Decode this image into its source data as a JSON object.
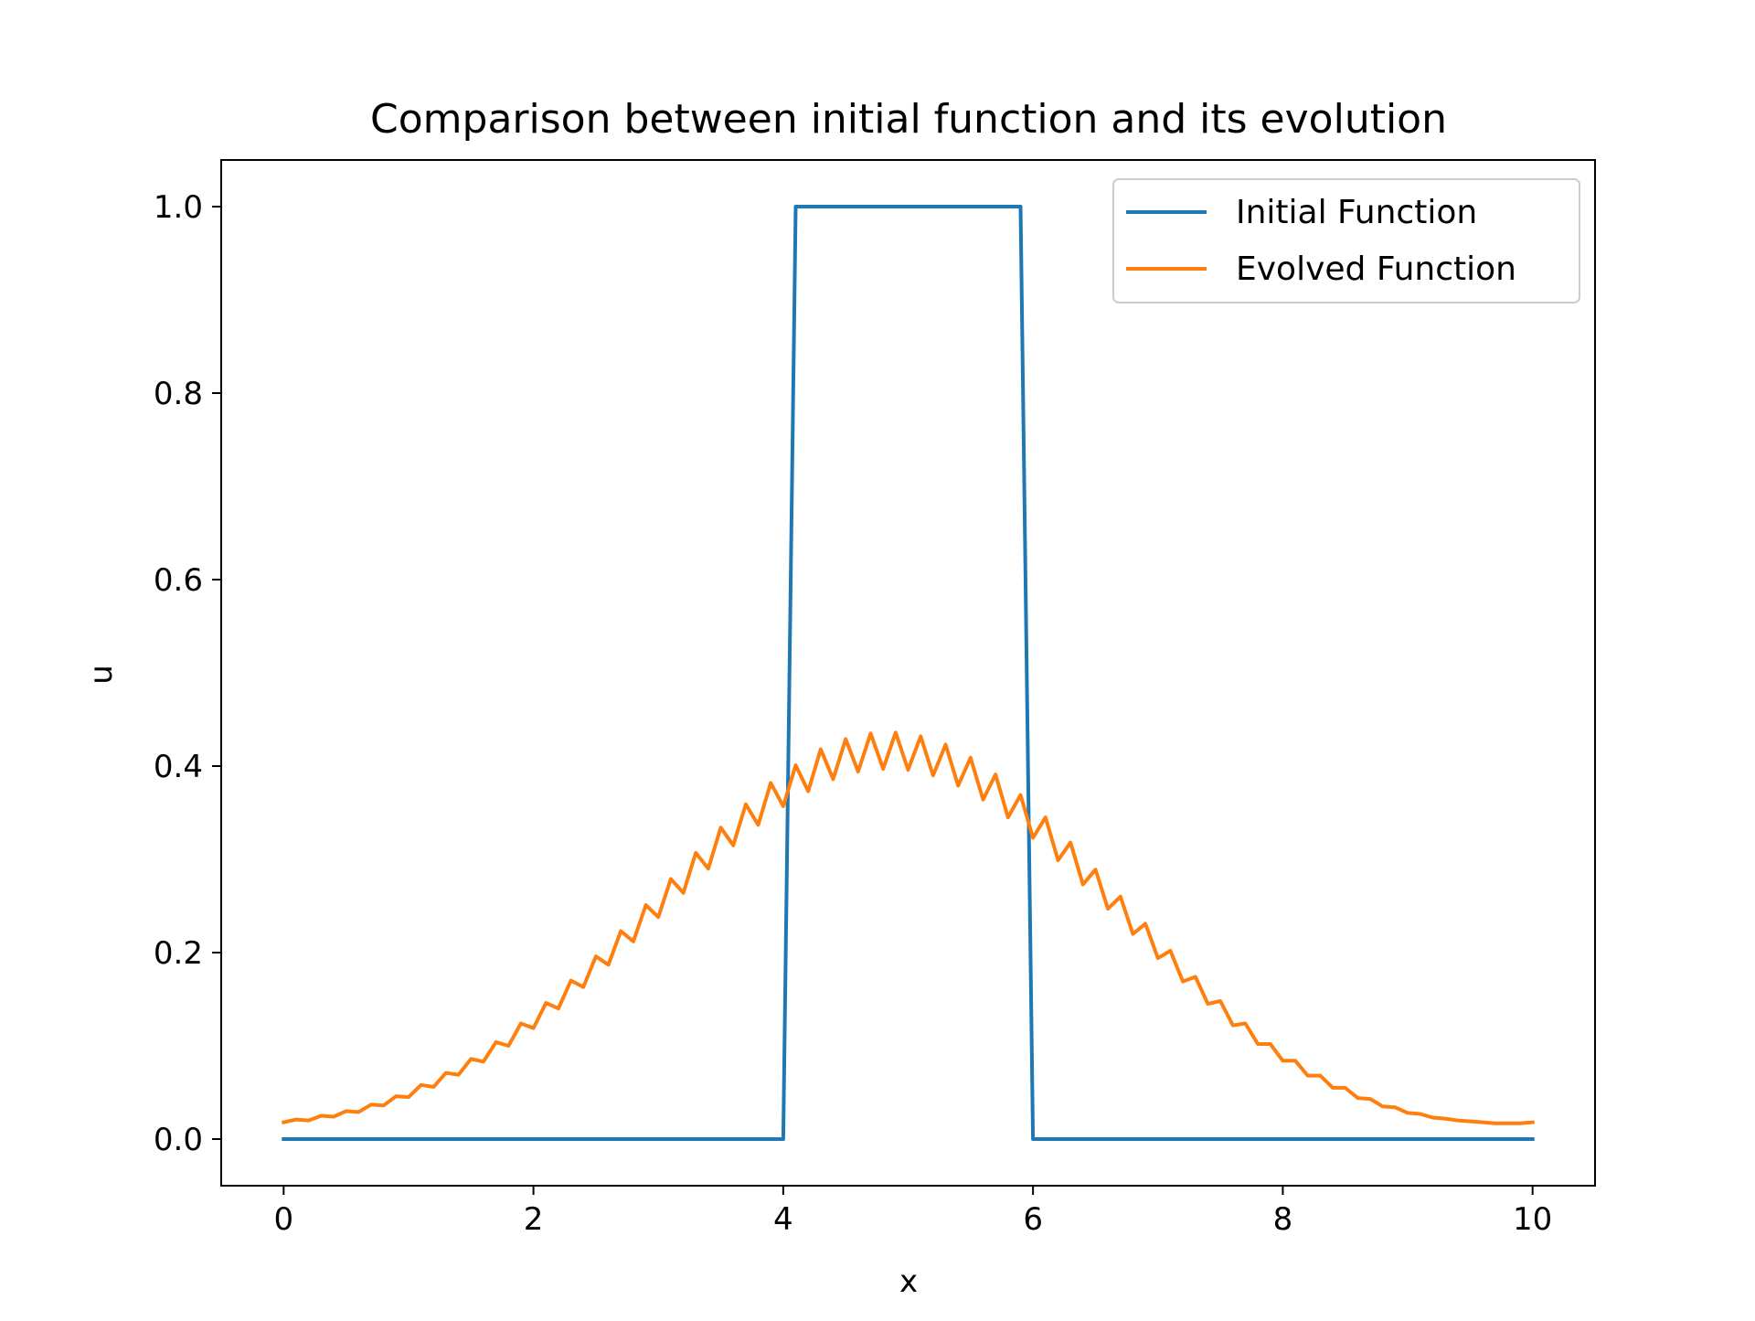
{
  "chart_data": {
    "type": "line",
    "title": "Comparison between initial function and its evolution",
    "xlabel": "x",
    "ylabel": "u",
    "xlim": [
      -0.5,
      10.5
    ],
    "ylim": [
      -0.05,
      1.05
    ],
    "xticks": [
      0,
      2,
      4,
      6,
      8,
      10
    ],
    "xtick_labels": [
      "0",
      "2",
      "4",
      "6",
      "8",
      "10"
    ],
    "yticks": [
      0.0,
      0.2,
      0.4,
      0.6,
      0.8,
      1.0
    ],
    "ytick_labels": [
      "0.0",
      "0.2",
      "0.4",
      "0.6",
      "0.8",
      "1.0"
    ],
    "grid": false,
    "legend_position": "top-right",
    "series": [
      {
        "name": "Initial Function",
        "color": "#1f77b4",
        "x": [
          0,
          4.0,
          4.1,
          5.9,
          6.0,
          10
        ],
        "y": [
          0,
          0,
          1,
          1,
          0,
          0
        ]
      },
      {
        "name": "Evolved Function",
        "color": "#ff7f0e",
        "x": [
          0.0,
          0.1,
          0.2,
          0.3,
          0.4,
          0.5,
          0.6,
          0.7,
          0.8,
          0.9,
          1.0,
          1.1,
          1.2,
          1.3,
          1.4,
          1.5,
          1.6,
          1.7,
          1.8,
          1.9,
          2.0,
          2.1,
          2.2,
          2.3,
          2.4,
          2.5,
          2.6,
          2.7,
          2.8,
          2.9,
          3.0,
          3.1,
          3.2,
          3.3,
          3.4,
          3.5,
          3.6,
          3.7,
          3.8,
          3.9,
          4.0,
          4.1,
          4.2,
          4.3,
          4.4,
          4.5,
          4.6,
          4.7,
          4.8,
          4.9,
          5.0,
          5.1,
          5.2,
          5.3,
          5.4,
          5.5,
          5.6,
          5.7,
          5.8,
          5.9,
          6.0,
          6.1,
          6.2,
          6.3,
          6.4,
          6.5,
          6.6,
          6.7,
          6.8,
          6.9,
          7.0,
          7.1,
          7.2,
          7.3,
          7.4,
          7.5,
          7.6,
          7.7,
          7.8,
          7.9,
          8.0,
          8.1,
          8.2,
          8.3,
          8.4,
          8.5,
          8.6,
          8.7,
          8.8,
          8.9,
          9.0,
          9.1,
          9.2,
          9.3,
          9.4,
          9.5,
          9.6,
          9.7,
          9.8,
          9.9,
          10.0
        ],
        "y": [
          0.018,
          0.021,
          0.02,
          0.025,
          0.024,
          0.03,
          0.029,
          0.037,
          0.036,
          0.046,
          0.045,
          0.058,
          0.056,
          0.071,
          0.069,
          0.086,
          0.083,
          0.104,
          0.1,
          0.124,
          0.119,
          0.146,
          0.14,
          0.17,
          0.163,
          0.196,
          0.187,
          0.223,
          0.212,
          0.251,
          0.238,
          0.279,
          0.264,
          0.307,
          0.29,
          0.334,
          0.315,
          0.359,
          0.337,
          0.382,
          0.357,
          0.401,
          0.373,
          0.418,
          0.386,
          0.429,
          0.394,
          0.435,
          0.397,
          0.436,
          0.396,
          0.432,
          0.39,
          0.423,
          0.379,
          0.409,
          0.364,
          0.391,
          0.345,
          0.369,
          0.323,
          0.345,
          0.299,
          0.318,
          0.273,
          0.289,
          0.247,
          0.26,
          0.22,
          0.231,
          0.194,
          0.202,
          0.169,
          0.174,
          0.145,
          0.148,
          0.122,
          0.124,
          0.102,
          0.102,
          0.084,
          0.084,
          0.068,
          0.068,
          0.055,
          0.055,
          0.044,
          0.043,
          0.035,
          0.034,
          0.028,
          0.027,
          0.023,
          0.022,
          0.02,
          0.019,
          0.018,
          0.017,
          0.017,
          0.017,
          0.018
        ]
      }
    ]
  }
}
